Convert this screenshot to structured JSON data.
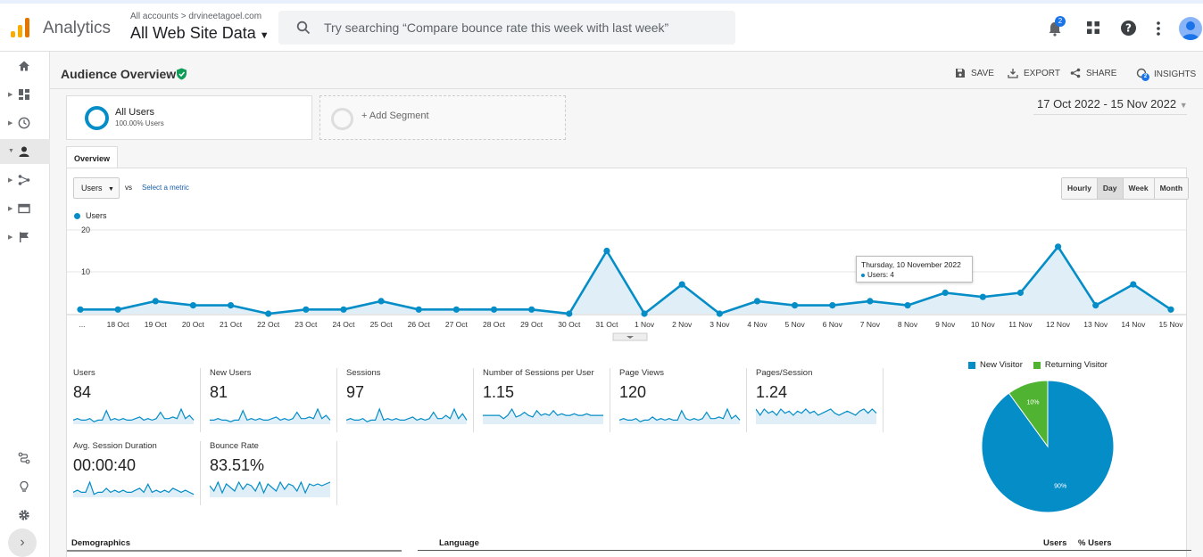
{
  "header": {
    "app_name": "Analytics",
    "account_breadcrumb": "All accounts > drvineetagoel.com",
    "property_name": "All Web Site Data",
    "search_placeholder": "Try searching “Compare bounce rate this week with last week”",
    "notification_count": "2"
  },
  "sidebar": {
    "items": [
      "home",
      "customization",
      "realtime",
      "audience",
      "acquisition",
      "behavior",
      "conversions"
    ],
    "bottom_items": [
      "attribution",
      "discover",
      "admin"
    ]
  },
  "report": {
    "title": "Audience Overview",
    "actions": {
      "save": "SAVE",
      "export": "EXPORT",
      "share": "SHARE",
      "insights": "INSIGHTS"
    },
    "insights_badge": "2",
    "date_range": "17 Oct 2022 - 15 Nov 2022",
    "segments": [
      {
        "name": "All Users",
        "pct": "100.00% Users"
      },
      {
        "name": "+ Add Segment"
      }
    ],
    "tab": "Overview",
    "metric_select": "Users",
    "vs_label": "vs",
    "select_metric_label": "Select a metric",
    "granularity": [
      "Hourly",
      "Day",
      "Week",
      "Month"
    ],
    "granularity_selected": "Day",
    "legend_label": "Users",
    "tooltip": {
      "date": "Thursday, 10 November 2022",
      "value": "Users: 4"
    }
  },
  "chart_data": {
    "type": "line",
    "series": [
      {
        "name": "Users",
        "color": "#058dc7",
        "values": [
          1,
          1,
          3,
          2,
          2,
          0,
          1,
          1,
          3,
          1,
          1,
          1,
          1,
          0,
          15,
          0,
          7,
          0,
          3,
          2,
          2,
          3,
          2,
          5,
          4,
          5,
          16,
          2,
          7,
          1
        ]
      }
    ],
    "x_labels": [
      "...",
      "18 Oct",
      "19 Oct",
      "20 Oct",
      "21 Oct",
      "22 Oct",
      "23 Oct",
      "24 Oct",
      "25 Oct",
      "26 Oct",
      "27 Oct",
      "28 Oct",
      "29 Oct",
      "30 Oct",
      "31 Oct",
      "1 Nov",
      "2 Nov",
      "3 Nov",
      "4 Nov",
      "5 Nov",
      "6 Nov",
      "7 Nov",
      "8 Nov",
      "9 Nov",
      "10 Nov",
      "11 Nov",
      "12 Nov",
      "13 Nov",
      "14 Nov",
      "15 Nov"
    ],
    "y_ticks": [
      "20",
      "10"
    ],
    "ylim": [
      0,
      20
    ],
    "grid": true
  },
  "metrics": [
    {
      "label": "Users",
      "value": "84"
    },
    {
      "label": "New Users",
      "value": "81"
    },
    {
      "label": "Sessions",
      "value": "97"
    },
    {
      "label": "Number of Sessions per User",
      "value": "1.15"
    },
    {
      "label": "Page Views",
      "value": "120"
    },
    {
      "label": "Pages/Session",
      "value": "1.24"
    },
    {
      "label": "Avg. Session Duration",
      "value": "00:00:40"
    },
    {
      "label": "Bounce Rate",
      "value": "83.51%"
    }
  ],
  "pie": {
    "legend": [
      {
        "name": "New Visitor",
        "color": "#058dc7"
      },
      {
        "name": "Returning Visitor",
        "color": "#50b432"
      }
    ],
    "slices": [
      {
        "label": "90%",
        "value": 90,
        "color": "#058dc7"
      },
      {
        "label": "10%",
        "value": 10,
        "color": "#50b432"
      }
    ]
  },
  "bottom": {
    "demographics": "Demographics",
    "language": "Language",
    "col_users": "Users",
    "col_pct": "% Users"
  }
}
